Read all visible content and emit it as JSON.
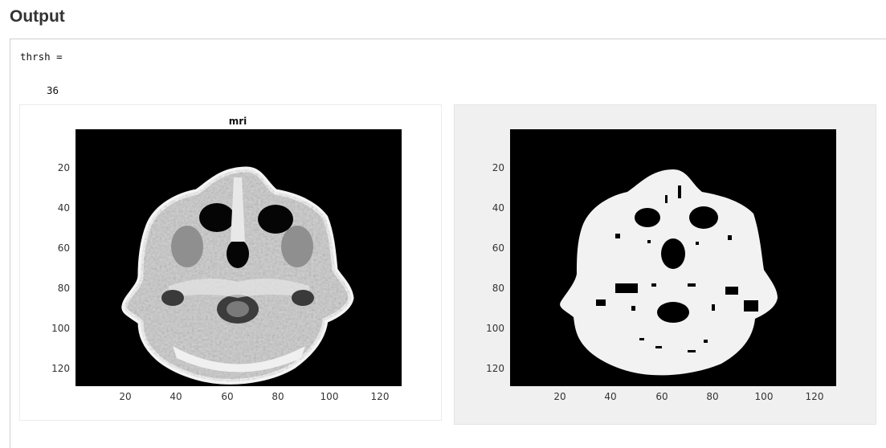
{
  "page": {
    "heading": "Output"
  },
  "console": {
    "variable_line": "thrsh =",
    "value": "36"
  },
  "figures": [
    {
      "title": "mri",
      "background": "#ffffff",
      "x_ticks": [
        "20",
        "40",
        "60",
        "80",
        "100",
        "120"
      ],
      "y_ticks": [
        "20",
        "40",
        "60",
        "80",
        "100",
        "120"
      ],
      "image": "grayscale axial MRI head slice"
    },
    {
      "title": "",
      "background": "#f0f0f0",
      "x_ticks": [
        "20",
        "40",
        "60",
        "80",
        "100",
        "120"
      ],
      "y_ticks": [
        "20",
        "40",
        "60",
        "80",
        "100",
        "120"
      ],
      "image": "binary thresholded MRI mask"
    }
  ],
  "colors": {
    "plot_bg": "#000000",
    "mask_fg": "#f2f2f2"
  }
}
